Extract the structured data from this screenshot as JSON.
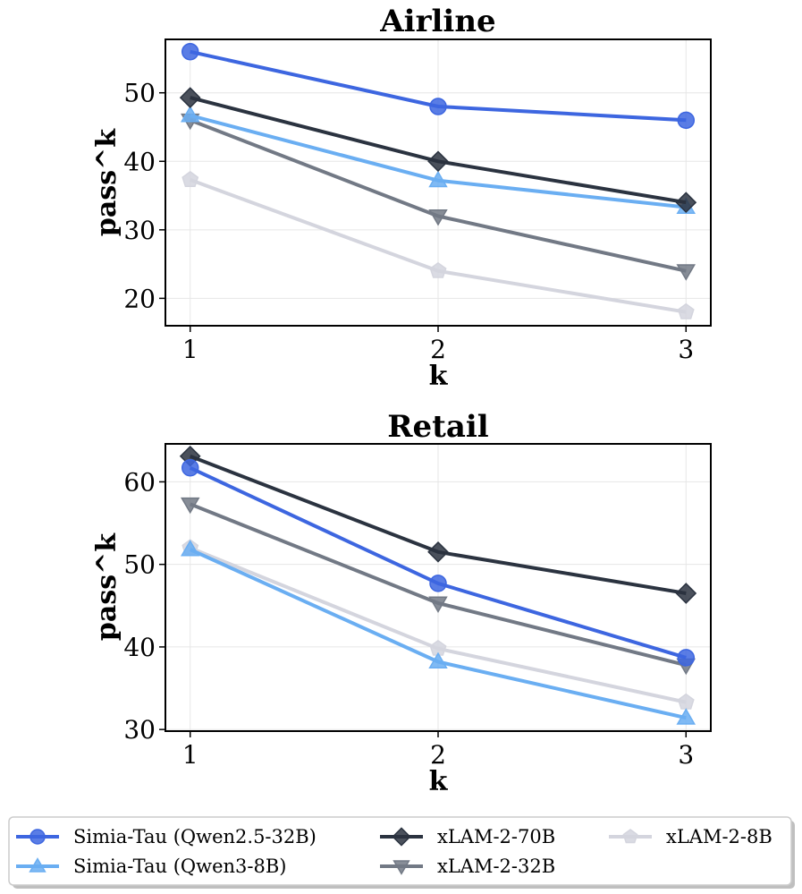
{
  "colors": {
    "simia_qwen25": "#3d66e0",
    "simia_qwen3": "#6aaef2",
    "xlam70": "#2b3340",
    "xlam32": "#727985",
    "xlam8": "#d4d5de"
  },
  "legend": [
    {
      "name": "Simia-Tau (Qwen2.5-32B)",
      "color_key": "simia_qwen25",
      "marker": "circle"
    },
    {
      "name": "Simia-Tau (Qwen3-8B)",
      "color_key": "simia_qwen3",
      "marker": "triangle-up"
    },
    {
      "name": "xLAM-2-70B",
      "color_key": "xlam70",
      "marker": "diamond"
    },
    {
      "name": "xLAM-2-32B",
      "color_key": "xlam32",
      "marker": "triangle-down"
    },
    {
      "name": "xLAM-2-8B",
      "color_key": "xlam8",
      "marker": "pentagon"
    }
  ],
  "chart_data": [
    {
      "type": "line",
      "title": "Airline",
      "xlabel": "k",
      "ylabel": "pass^k",
      "x": [
        1,
        2,
        3
      ],
      "xticks": [
        "1",
        "2",
        "3"
      ],
      "yticks": [
        "20",
        "30",
        "40",
        "50"
      ],
      "xlim": [
        0.9,
        3.1
      ],
      "ylim": [
        16,
        57.8
      ],
      "grid": true,
      "series": [
        {
          "name": "xLAM-2-8B",
          "values": [
            37.3,
            24.0,
            18.0
          ]
        },
        {
          "name": "xLAM-2-32B",
          "values": [
            46.0,
            32.0,
            24.0
          ]
        },
        {
          "name": "Simia-Tau (Qwen3-8B)",
          "values": [
            46.7,
            37.2,
            33.3
          ]
        },
        {
          "name": "xLAM-2-70B",
          "values": [
            49.3,
            40.0,
            34.0
          ]
        },
        {
          "name": "Simia-Tau (Qwen2.5-32B)",
          "values": [
            56.0,
            48.0,
            46.0
          ]
        }
      ]
    },
    {
      "type": "line",
      "title": "Retail",
      "xlabel": "k",
      "ylabel": "pass^k",
      "x": [
        1,
        2,
        3
      ],
      "xticks": [
        "1",
        "2",
        "3"
      ],
      "yticks": [
        "30",
        "40",
        "50",
        "60"
      ],
      "xlim": [
        0.9,
        3.1
      ],
      "ylim": [
        29.8,
        64.6
      ],
      "grid": true,
      "series": [
        {
          "name": "xLAM-2-8B",
          "values": [
            52.0,
            39.8,
            33.3
          ]
        },
        {
          "name": "xLAM-2-32B",
          "values": [
            57.3,
            45.3,
            37.8
          ]
        },
        {
          "name": "Simia-Tau (Qwen3-8B)",
          "values": [
            51.8,
            38.2,
            31.4
          ]
        },
        {
          "name": "xLAM-2-70B",
          "values": [
            63.1,
            51.5,
            46.5
          ]
        },
        {
          "name": "Simia-Tau (Qwen2.5-32B)",
          "values": [
            61.7,
            47.7,
            38.7
          ]
        }
      ]
    }
  ]
}
